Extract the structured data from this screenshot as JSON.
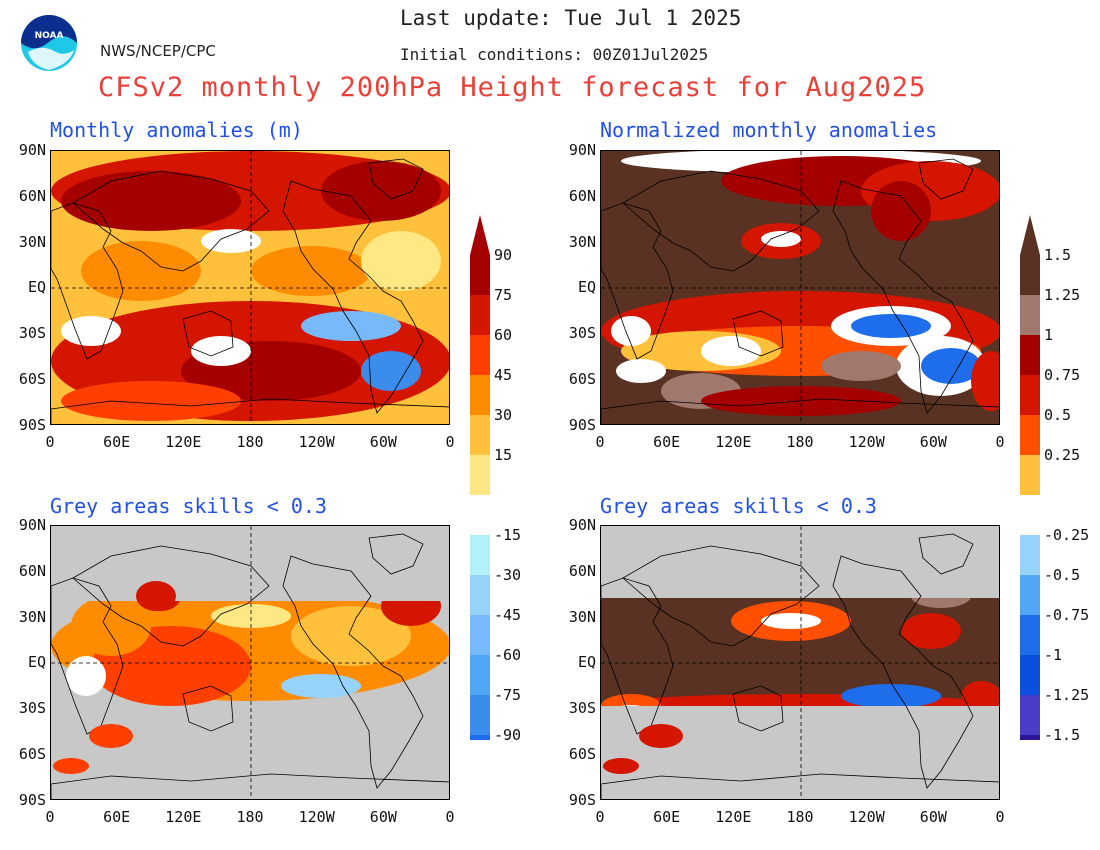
{
  "header": {
    "last_update": "Last update: Tue Jul 1 2025",
    "agency": "NWS/NCEP/CPC",
    "initial_conditions": "Initial conditions: 00Z01Jul2025",
    "title": "CFSv2 monthly 200hPa Height forecast for Aug2025",
    "logo_text": "NOAA"
  },
  "panels": {
    "top_left": "Monthly anomalies (m)",
    "top_right": "Normalized monthly anomalies",
    "bottom_left": "Grey areas skills < 0.3",
    "bottom_right": "Grey areas skills < 0.3"
  },
  "axes": {
    "lat_labels": [
      "90N",
      "60N",
      "30N",
      "EQ",
      "30S",
      "60S",
      "90S"
    ],
    "lon_labels": [
      "0",
      "60E",
      "120E",
      "180",
      "120W",
      "60W",
      "0"
    ]
  },
  "colorbar_left": {
    "labels": [
      "90",
      "75",
      "60",
      "45",
      "30",
      "15",
      "-15",
      "-30",
      "-45",
      "-60",
      "-75",
      "-90"
    ]
  },
  "colorbar_right": {
    "labels": [
      "1.5",
      "1.25",
      "1",
      "0.75",
      "0.5",
      "0.25",
      "-0.25",
      "-0.5",
      "-0.75",
      "-1",
      "-1.25",
      "-1.5"
    ]
  },
  "colors": {
    "warm": [
      "#ffe883",
      "#ffc03c",
      "#ff8c00",
      "#ff3f00",
      "#d41500",
      "#a50000"
    ],
    "cool": [
      "#b4f0fa",
      "#96d2fa",
      "#78b9fa",
      "#50a5f5",
      "#3c8ceb",
      "#1e6eeb"
    ],
    "norm_warm": [
      "#ffc03c",
      "#ff5000",
      "#d41500",
      "#a50000",
      "#a0786e",
      "#5a3223"
    ],
    "norm_cool": [
      "#96d2fa",
      "#50a5f5",
      "#1e6eeb",
      "#0a50dc",
      "#4b3cc8",
      "#2d1496"
    ],
    "grey": "#c8c8c8"
  }
}
